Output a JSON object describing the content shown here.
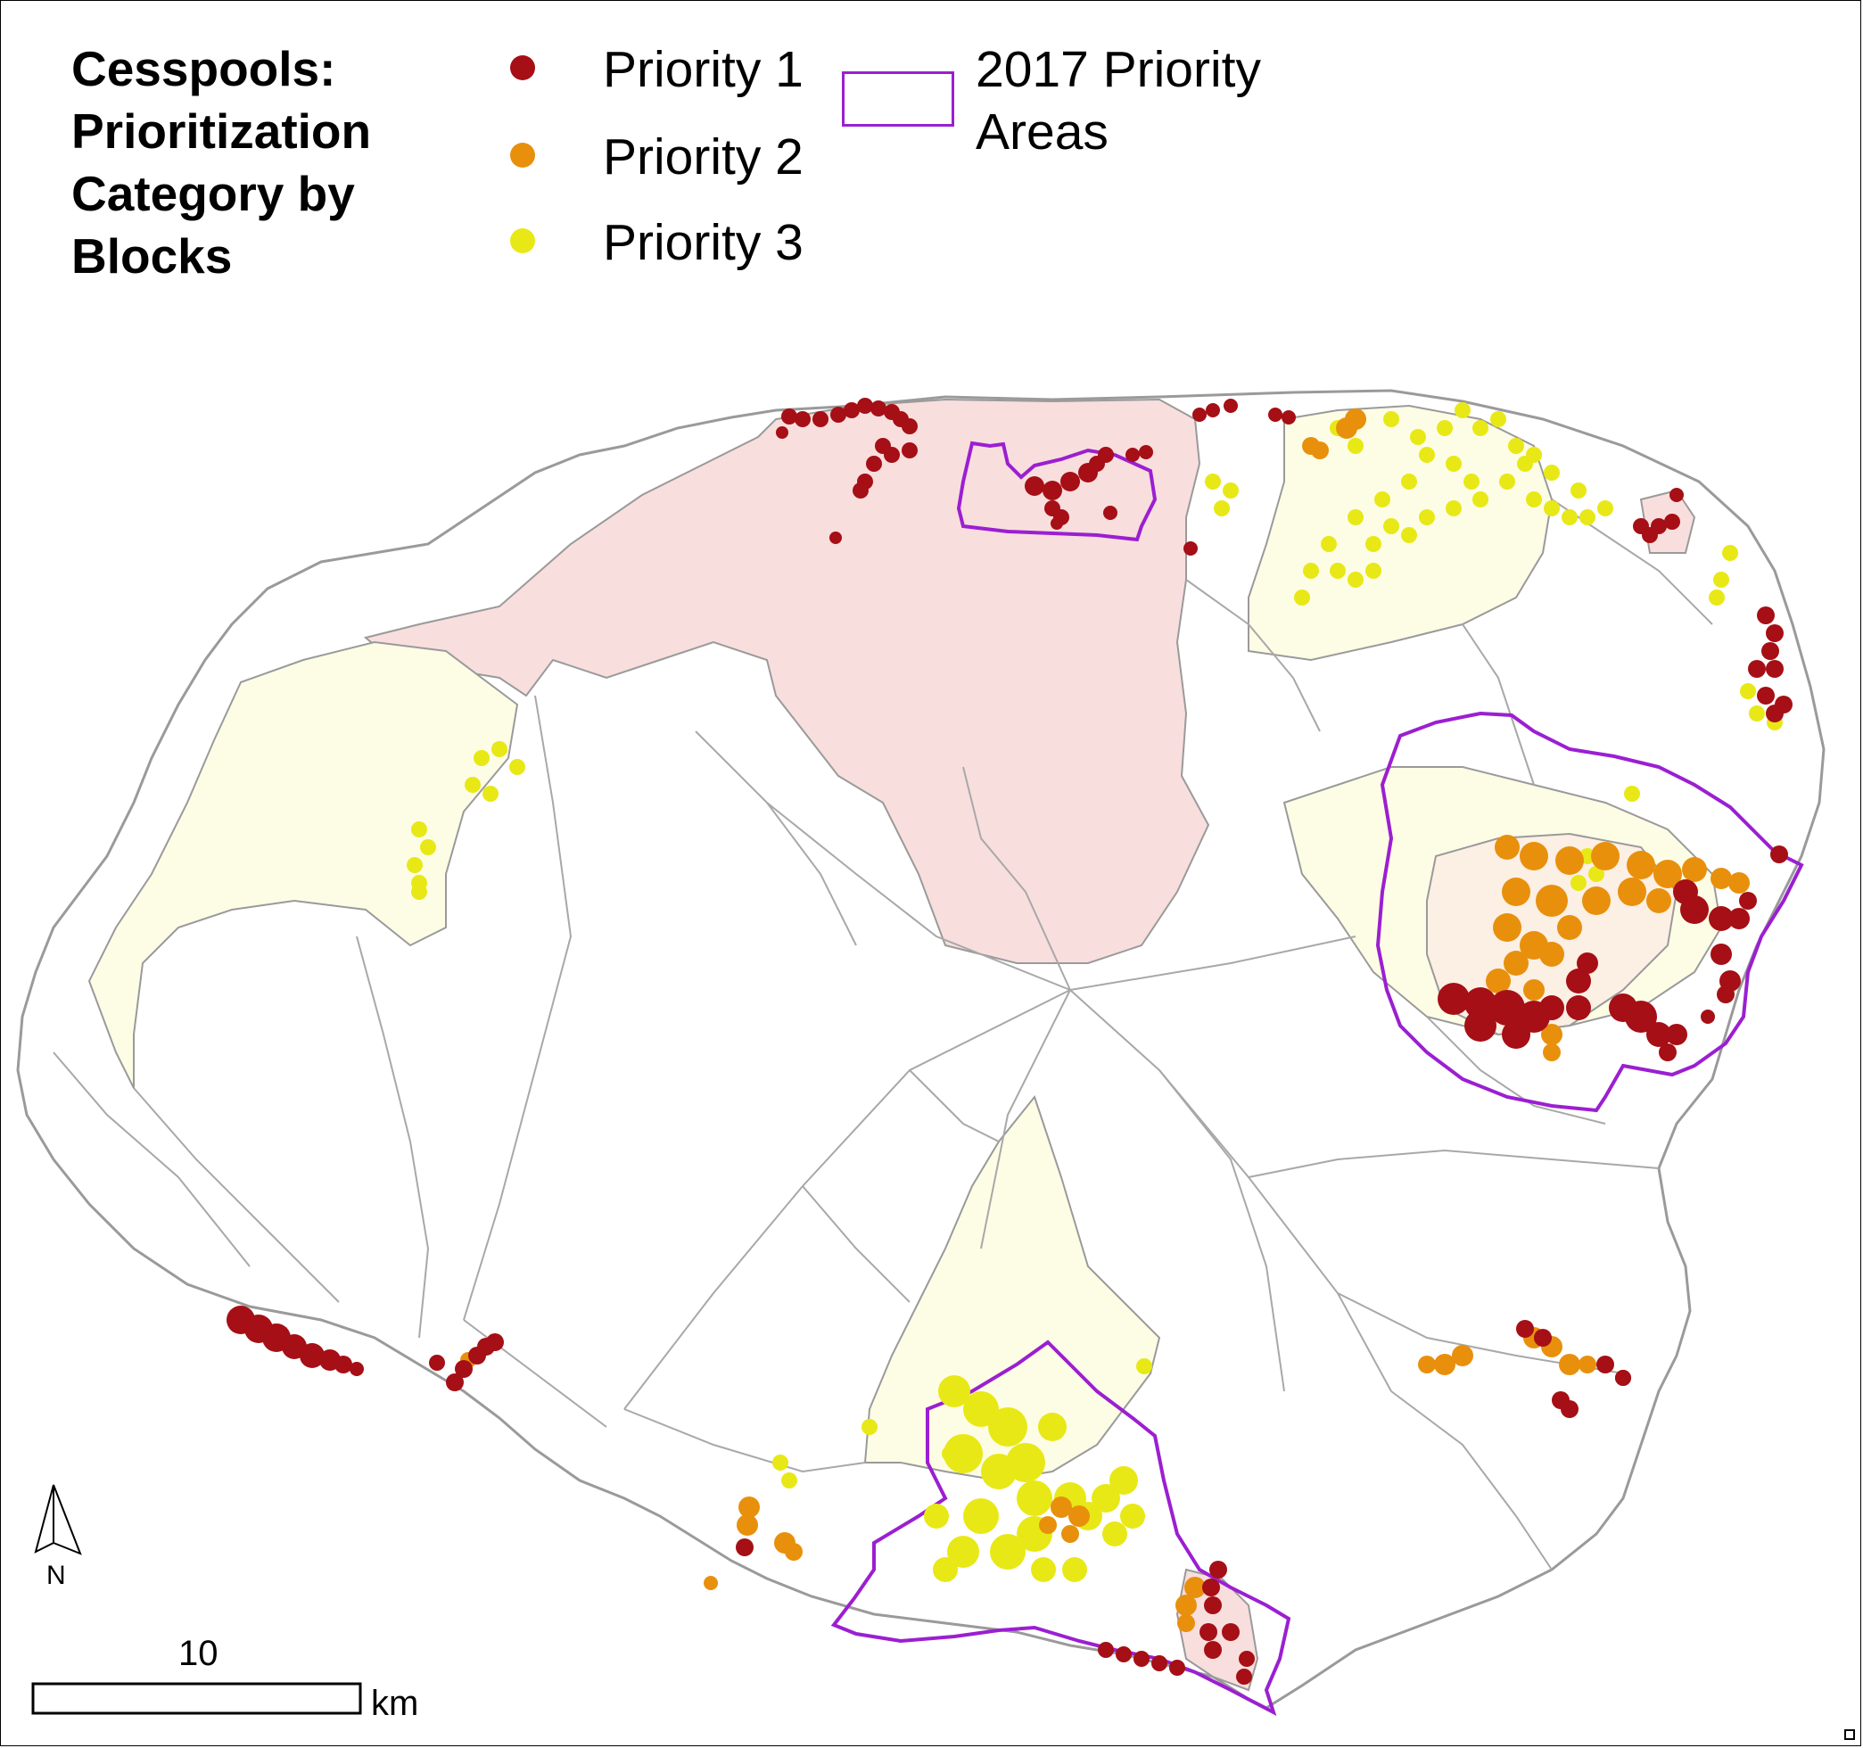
{
  "legend": {
    "title_lines": [
      "Cesspools:",
      "Prioritization",
      "Category by",
      "Blocks"
    ],
    "items": [
      {
        "label": "Priority 1",
        "color": "#a50f15"
      },
      {
        "label": "Priority 2",
        "color": "#e8900c"
      },
      {
        "label": "Priority 3",
        "color": "#e8e816"
      }
    ],
    "area": {
      "label_lines": [
        "2017 Priority",
        "Areas"
      ],
      "color": "#9b1fd1"
    }
  },
  "colors": {
    "priority1_fill": "#f9dede",
    "priority2_fill": "#fcefe4",
    "priority3_fill": "#fdfde6",
    "boundary": "#9a9a9a"
  },
  "scale_bar": {
    "value": "10",
    "unit": "km"
  },
  "north_arrow": {
    "label": "N"
  }
}
